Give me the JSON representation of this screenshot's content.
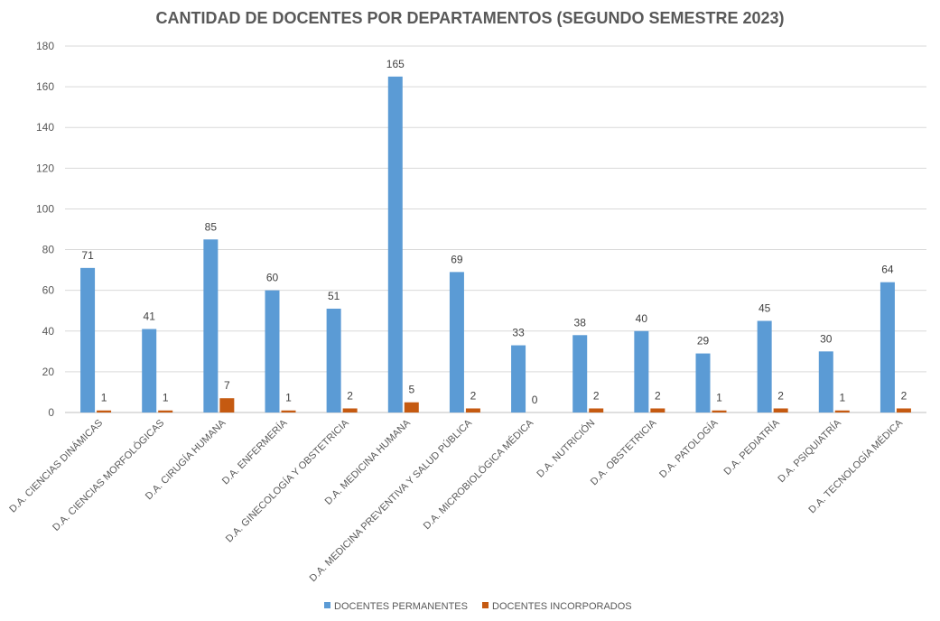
{
  "chart_data": {
    "type": "bar",
    "title": "CANTIDAD DE DOCENTES POR DEPARTAMENTOS (SEGUNDO SEMESTRE 2023)",
    "xlabel": "",
    "ylabel": "",
    "ylim": [
      0,
      180
    ],
    "y_ticks": [
      "0",
      "20",
      "40",
      "60",
      "80",
      "100",
      "120",
      "140",
      "160",
      "180"
    ],
    "grid": true,
    "legend_position": "bottom",
    "categories": [
      "D.A. CIENCIAS DINÁMICAS",
      "D.A. CIENCIAS MORFOLÓGICAS",
      "D.A. CIRUGÍA HUMANA",
      "D.A. ENFERMERÍA",
      "D.A. GINECOLOGÍA Y OBSTETRICIA",
      "D.A. MEDICINA HUMANA",
      "D.A. MEDICINA PREVENTIVA Y SALUD PÚBLICA",
      "D.A. MICROBIOLÓGICA MÉDICA",
      "D.A. NUTRICIÓN",
      "D.A. OBSTETRICIA",
      "D.A. PATOLOGÍA",
      "D.A. PEDIATRÍA",
      "D.A. PSIQUIATRÍA",
      "D.A. TECNOLOGÍA MÉDICA"
    ],
    "series": [
      {
        "name": "DOCENTES PERMANENTES",
        "color": "#5B9BD5",
        "values": [
          71,
          41,
          85,
          60,
          51,
          165,
          69,
          33,
          38,
          40,
          29,
          45,
          30,
          64
        ]
      },
      {
        "name": "DOCENTES INCORPORADOS",
        "color": "#C55A11",
        "values": [
          1,
          1,
          7,
          1,
          2,
          5,
          2,
          0,
          2,
          2,
          1,
          2,
          1,
          2
        ]
      }
    ]
  }
}
